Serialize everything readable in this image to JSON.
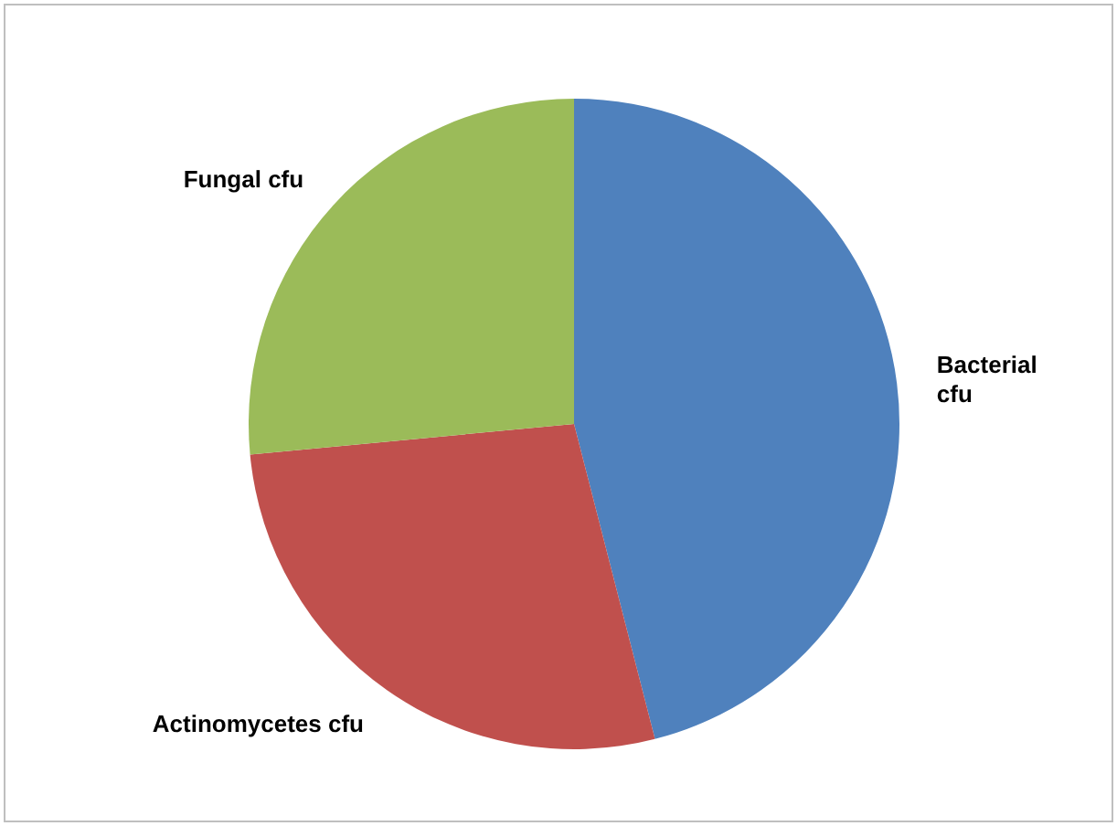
{
  "chart_data": {
    "type": "pie",
    "categories": [
      "Bacterial cfu",
      "Actinomycetes cfu",
      "Fungal cfu"
    ],
    "values": [
      46,
      27.5,
      26.5
    ],
    "colors": [
      "#4f81bd",
      "#c0504d",
      "#9bbb59"
    ]
  }
}
